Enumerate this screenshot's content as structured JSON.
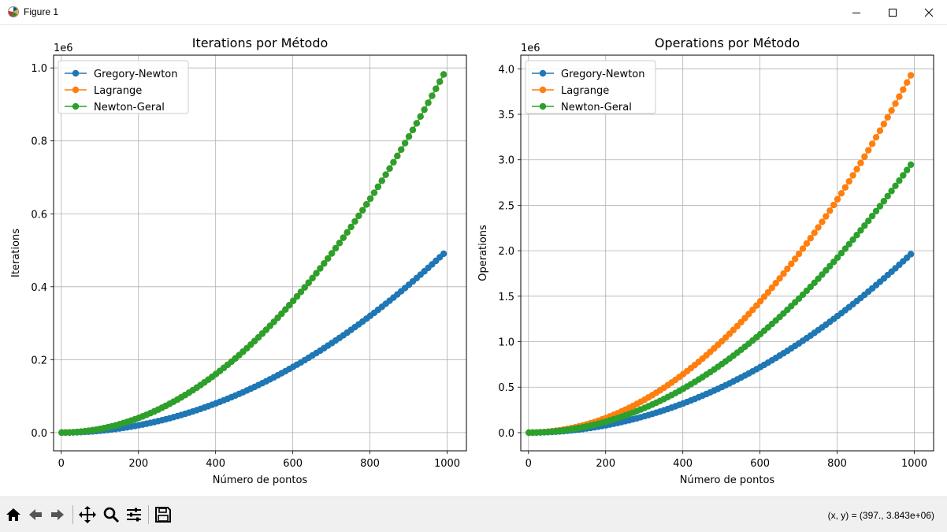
{
  "window": {
    "title": "Figure 1",
    "minimize_icon": "minimize-icon",
    "maximize_icon": "maximize-icon",
    "close_icon": "close-icon"
  },
  "toolbar": {
    "items": [
      "home-icon",
      "back-arrow-icon",
      "forward-arrow-icon",
      "pan-move-icon",
      "zoom-magnifier-icon",
      "configure-subplots-icon",
      "save-disk-icon"
    ],
    "coords": "(x, y) = (397., 3.843e+06)"
  },
  "colors": {
    "Gregory-Newton": "#1f77b4",
    "Lagrange": "#ff7f0e",
    "Newton-Geral": "#2ca02c"
  },
  "chart_data": [
    {
      "type": "line",
      "title": "Iterations por Método",
      "xlabel": "Número de pontos",
      "ylabel": "Iterations",
      "offset_text": "1e6",
      "xlim": [
        -20,
        1050
      ],
      "ylim": [
        -50000,
        1035000
      ],
      "xticks": [
        0,
        200,
        400,
        600,
        800,
        1000
      ],
      "xtick_labels": [
        "0",
        "200",
        "400",
        "600",
        "800",
        "1000"
      ],
      "yticks": [
        0,
        200000,
        400000,
        600000,
        800000,
        1000000
      ],
      "ytick_labels": [
        "0.0",
        "0.2",
        "0.4",
        "0.6",
        "0.8",
        "1.0"
      ],
      "grid": true,
      "legend": "upper-left",
      "marker": "circle",
      "x": [
        1,
        11,
        21,
        31,
        41,
        51,
        61,
        71,
        81,
        91,
        101,
        111,
        121,
        131,
        141,
        151,
        161,
        171,
        181,
        191,
        201,
        211,
        221,
        231,
        241,
        251,
        261,
        271,
        281,
        291,
        301,
        311,
        321,
        331,
        341,
        351,
        361,
        371,
        381,
        391,
        401,
        411,
        421,
        431,
        441,
        451,
        461,
        471,
        481,
        491,
        501,
        511,
        521,
        531,
        541,
        551,
        561,
        571,
        581,
        591,
        601,
        611,
        621,
        631,
        641,
        651,
        661,
        671,
        681,
        691,
        701,
        711,
        721,
        731,
        741,
        751,
        761,
        771,
        781,
        791,
        801,
        811,
        821,
        831,
        841,
        851,
        861,
        871,
        881,
        891,
        901,
        911,
        921,
        931,
        941,
        951,
        961,
        971,
        981,
        991
      ],
      "series": [
        {
          "name": "Gregory-Newton",
          "values": [
            0,
            55,
            210,
            465,
            820,
            1275,
            1830,
            2485,
            3240,
            4095,
            5050,
            6105,
            7260,
            8515,
            9870,
            11325,
            12880,
            14535,
            16290,
            18145,
            20100,
            22155,
            24310,
            26565,
            28920,
            31375,
            33930,
            36585,
            39340,
            42195,
            45150,
            48205,
            51360,
            54615,
            57970,
            61425,
            64980,
            68635,
            72390,
            76245,
            80200,
            84255,
            88410,
            92665,
            97020,
            101475,
            106030,
            110685,
            115440,
            120295,
            125250,
            130305,
            135460,
            140715,
            146070,
            151525,
            157080,
            162735,
            168490,
            174345,
            180300,
            186355,
            192510,
            198765,
            205120,
            211575,
            218130,
            224785,
            231540,
            238395,
            245350,
            252405,
            259560,
            266815,
            274170,
            281625,
            289180,
            296835,
            304590,
            312445,
            320400,
            328455,
            336610,
            344865,
            353220,
            361675,
            370230,
            378885,
            387640,
            396495,
            405450,
            414505,
            423660,
            432915,
            442270,
            451725,
            461280,
            470935,
            480690,
            490545
          ]
        },
        {
          "name": "Lagrange",
          "values": [
            1,
            121,
            441,
            961,
            1681,
            2601,
            3721,
            5041,
            6561,
            8281,
            10201,
            12321,
            14641,
            17161,
            19881,
            22801,
            25921,
            29241,
            32761,
            36481,
            40401,
            44521,
            48841,
            53361,
            58081,
            63001,
            68121,
            73441,
            78961,
            84681,
            90601,
            96721,
            103041,
            109561,
            116281,
            123201,
            130321,
            137641,
            145161,
            152881,
            160801,
            168921,
            177241,
            185761,
            194481,
            203401,
            212521,
            221841,
            231361,
            241081,
            251001,
            261121,
            271441,
            281961,
            292681,
            303601,
            314721,
            326041,
            337561,
            349281,
            361201,
            373321,
            385641,
            398161,
            410881,
            423801,
            436921,
            450241,
            463761,
            477481,
            491401,
            505521,
            519841,
            534361,
            549081,
            564001,
            579121,
            594441,
            609961,
            625681,
            641601,
            657721,
            674041,
            690561,
            707281,
            724201,
            741321,
            758641,
            776161,
            793881,
            811801,
            829921,
            848241,
            866761,
            885481,
            904401,
            923521,
            942841,
            962361,
            982081
          ]
        },
        {
          "name": "Newton-Geral",
          "values": [
            1,
            121,
            441,
            961,
            1681,
            2601,
            3721,
            5041,
            6561,
            8281,
            10201,
            12321,
            14641,
            17161,
            19881,
            22801,
            25921,
            29241,
            32761,
            36481,
            40401,
            44521,
            48841,
            53361,
            58081,
            63001,
            68121,
            73441,
            78961,
            84681,
            90601,
            96721,
            103041,
            109561,
            116281,
            123201,
            130321,
            137641,
            145161,
            152881,
            160801,
            168921,
            177241,
            185761,
            194481,
            203401,
            212521,
            221841,
            231361,
            241081,
            251001,
            261121,
            271441,
            281961,
            292681,
            303601,
            314721,
            326041,
            337561,
            349281,
            361201,
            373321,
            385641,
            398161,
            410881,
            423801,
            436921,
            450241,
            463761,
            477481,
            491401,
            505521,
            519841,
            534361,
            549081,
            564001,
            579121,
            594441,
            609961,
            625681,
            641601,
            657721,
            674041,
            690561,
            707281,
            724201,
            741321,
            758641,
            776161,
            793881,
            811801,
            829921,
            848241,
            866761,
            885481,
            904401,
            923521,
            942841,
            962361,
            982081
          ]
        }
      ]
    },
    {
      "type": "line",
      "title": "Operations por Método",
      "xlabel": "Número de pontos",
      "ylabel": "Operations",
      "offset_text": "1e6",
      "xlim": [
        -20,
        1050
      ],
      "ylim": [
        -200000,
        4150000
      ],
      "xticks": [
        0,
        200,
        400,
        600,
        800,
        1000
      ],
      "xtick_labels": [
        "0",
        "200",
        "400",
        "600",
        "800",
        "1000"
      ],
      "yticks": [
        0,
        500000,
        1000000,
        1500000,
        2000000,
        2500000,
        3000000,
        3500000,
        4000000
      ],
      "ytick_labels": [
        "0.0",
        "0.5",
        "1.0",
        "1.5",
        "2.0",
        "2.5",
        "3.0",
        "3.5",
        "4.0"
      ],
      "grid": true,
      "legend": "upper-left",
      "marker": "circle",
      "x": [
        1,
        11,
        21,
        31,
        41,
        51,
        61,
        71,
        81,
        91,
        101,
        111,
        121,
        131,
        141,
        151,
        161,
        171,
        181,
        191,
        201,
        211,
        221,
        231,
        241,
        251,
        261,
        271,
        281,
        291,
        301,
        311,
        321,
        331,
        341,
        351,
        361,
        371,
        381,
        391,
        401,
        411,
        421,
        431,
        441,
        451,
        461,
        471,
        481,
        491,
        501,
        511,
        521,
        531,
        541,
        551,
        561,
        571,
        581,
        591,
        601,
        611,
        621,
        631,
        641,
        651,
        661,
        671,
        681,
        691,
        701,
        711,
        721,
        731,
        741,
        751,
        761,
        771,
        781,
        791,
        801,
        811,
        821,
        831,
        841,
        851,
        861,
        871,
        881,
        891,
        901,
        911,
        921,
        931,
        941,
        951,
        961,
        971,
        981,
        991
      ],
      "series": [
        {
          "name": "Gregory-Newton",
          "values": [
            0,
            220,
            840,
            1860,
            3280,
            5100,
            7320,
            9940,
            12960,
            16380,
            20200,
            24420,
            29040,
            34060,
            39480,
            45300,
            51520,
            58140,
            65160,
            72580,
            80400,
            88620,
            97240,
            106260,
            115680,
            125500,
            135720,
            146340,
            157360,
            168780,
            180600,
            192820,
            205440,
            218460,
            231880,
            245700,
            259920,
            274540,
            289560,
            304980,
            320800,
            337020,
            353640,
            370660,
            388080,
            405900,
            424120,
            442740,
            461760,
            481180,
            501000,
            521220,
            541840,
            562860,
            584280,
            606100,
            628320,
            650940,
            673960,
            697380,
            721200,
            745420,
            770040,
            795060,
            820480,
            846300,
            872520,
            899140,
            926160,
            953580,
            981400,
            1009620,
            1038240,
            1067260,
            1096680,
            1126500,
            1156720,
            1187340,
            1218360,
            1249780,
            1281600,
            1313820,
            1346440,
            1379460,
            1412880,
            1446700,
            1480920,
            1515540,
            1550560,
            1585980,
            1621800,
            1658020,
            1694640,
            1731660,
            1769080,
            1806900,
            1845120,
            1883740,
            1922760,
            1962180
          ]
        },
        {
          "name": "Lagrange",
          "values": [
            4,
            484,
            1764,
            3844,
            6724,
            10404,
            14884,
            20164,
            26244,
            33124,
            40804,
            49284,
            58564,
            68644,
            79524,
            91204,
            103684,
            116964,
            131044,
            145924,
            161604,
            178084,
            195364,
            213444,
            232324,
            252004,
            272484,
            293764,
            315844,
            338724,
            362404,
            386884,
            412164,
            438244,
            465124,
            492804,
            521284,
            550564,
            580644,
            611524,
            643204,
            675684,
            708964,
            743044,
            777924,
            813604,
            850084,
            887364,
            925444,
            964324,
            1004004,
            1044484,
            1085764,
            1127844,
            1170724,
            1214404,
            1258884,
            1304164,
            1350244,
            1397124,
            1444804,
            1493284,
            1542564,
            1592644,
            1643524,
            1695204,
            1747684,
            1800964,
            1855044,
            1909924,
            1965604,
            2022084,
            2079364,
            2137444,
            2196324,
            2256004,
            2316484,
            2377764,
            2439844,
            2502724,
            2566404,
            2630884,
            2696164,
            2762244,
            2829124,
            2896804,
            2965284,
            3034564,
            3104644,
            3175524,
            3247204,
            3319684,
            3392964,
            3467044,
            3541924,
            3617604,
            3694084,
            3771364,
            3849444,
            3928324
          ]
        },
        {
          "name": "Newton-Geral",
          "values": [
            3,
            363,
            1323,
            2883,
            5043,
            7803,
            11163,
            15123,
            19683,
            24843,
            30603,
            36963,
            43923,
            51483,
            59643,
            68403,
            77763,
            87723,
            98283,
            109443,
            121203,
            133563,
            146523,
            160083,
            174243,
            189003,
            204363,
            220323,
            236883,
            254043,
            271803,
            290163,
            309123,
            328683,
            348843,
            369603,
            390963,
            412923,
            435483,
            458643,
            482403,
            506763,
            531723,
            557283,
            583443,
            610203,
            637563,
            665523,
            694083,
            723243,
            753003,
            783363,
            814323,
            845883,
            878043,
            910803,
            944163,
            978123,
            1012683,
            1047843,
            1083603,
            1119963,
            1156923,
            1194483,
            1232643,
            1271403,
            1310763,
            1350723,
            1391283,
            1432443,
            1474203,
            1516563,
            1559523,
            1603083,
            1647243,
            1692003,
            1737363,
            1783323,
            1829883,
            1877043,
            1924803,
            1973163,
            2022123,
            2071683,
            2121843,
            2172603,
            2223963,
            2275923,
            2328483,
            2381643,
            2435403,
            2489763,
            2544723,
            2600283,
            2656443,
            2713203,
            2770563,
            2828523,
            2887083,
            2946243
          ]
        }
      ]
    }
  ]
}
